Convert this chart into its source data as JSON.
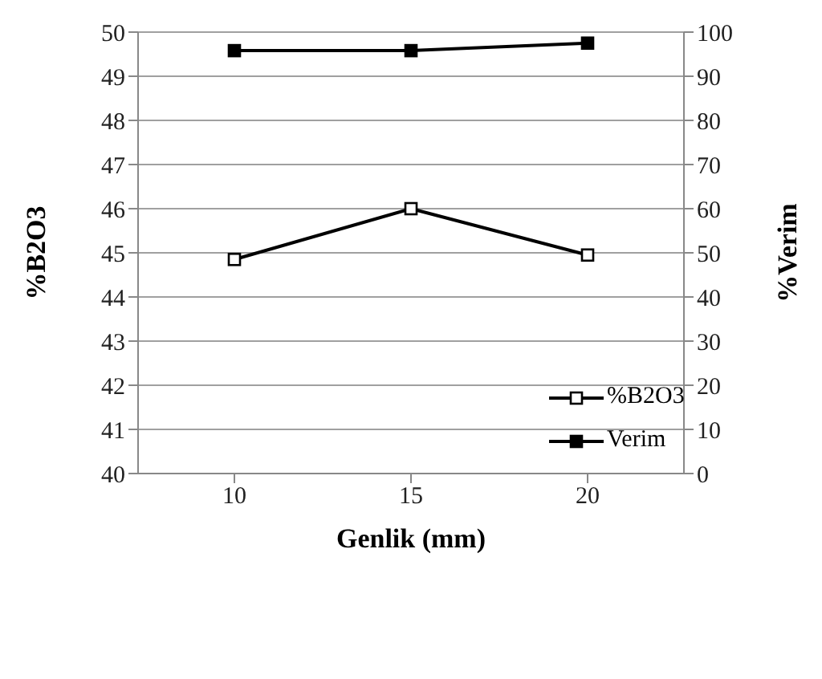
{
  "chart_data": {
    "type": "line",
    "xlabel": "Genlik (mm)",
    "ylabel": "%B2O3",
    "y2label": "%Verim",
    "categories": [
      "10",
      "15",
      "20"
    ],
    "series": [
      {
        "name": "%B2O3",
        "color": "#000000",
        "values": [
          44.85,
          46.0,
          44.95
        ]
      },
      {
        "name": "Verim",
        "color": "#000000",
        "values": [
          95.8,
          95.8,
          97.5
        ],
        "axis": "y2"
      }
    ],
    "ylim": [
      40,
      50
    ],
    "yticks": [
      40,
      41,
      42,
      43,
      44,
      45,
      46,
      47,
      48,
      49,
      50
    ],
    "y2lim": [
      0,
      100
    ],
    "y2ticks": [
      0,
      10,
      20,
      30,
      40,
      50,
      60,
      70,
      80,
      90,
      100
    ],
    "grid": "y",
    "legend": "bottom right",
    "marker": "square",
    "line_style": "solid"
  }
}
